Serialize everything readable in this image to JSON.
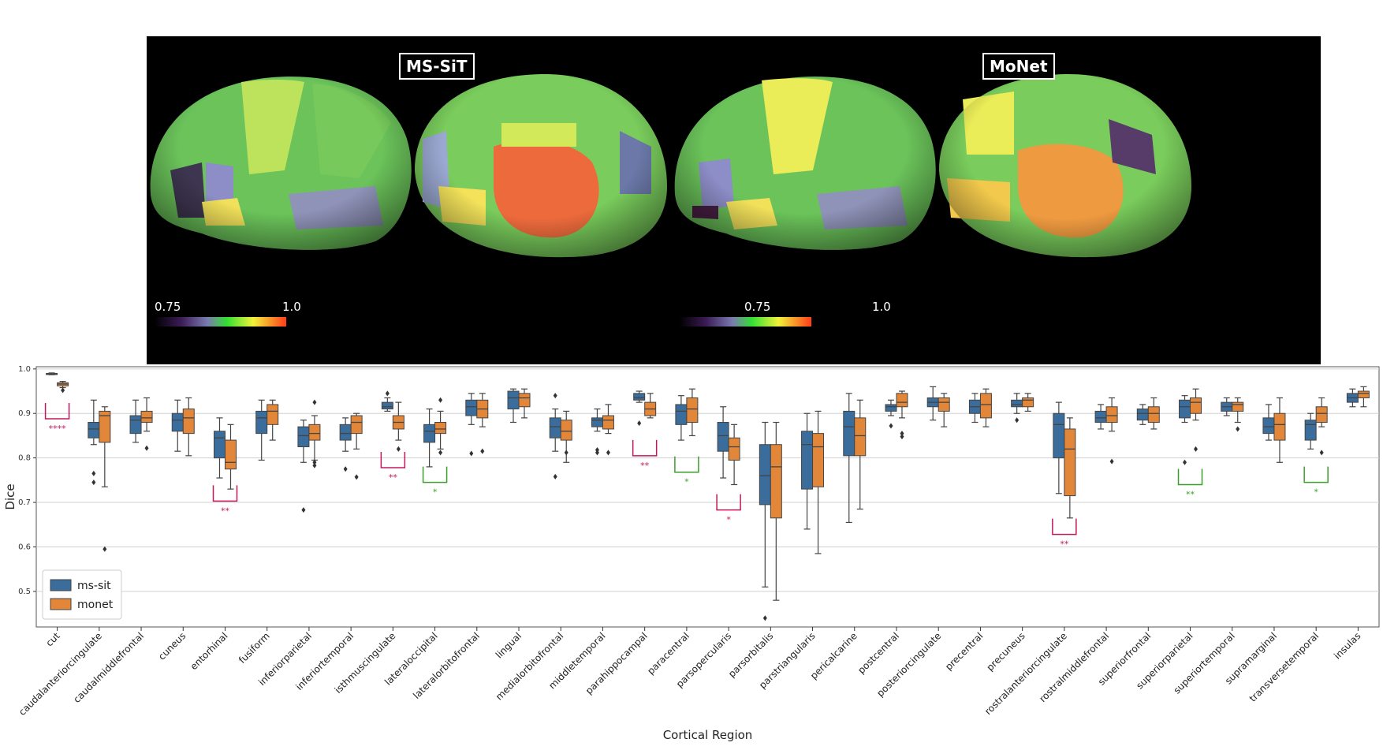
{
  "panel": {
    "left_title": "MS-SiT",
    "right_title": "MoNet",
    "colorbar_min": "0.75",
    "colorbar_max": "1.0"
  },
  "colors": {
    "ms-sit": "#3a6d9c",
    "monet": "#e2873a",
    "sig_magenta": "#c2185b",
    "sig_green": "#3a9e2a"
  },
  "chart_data": {
    "type": "box",
    "xlabel": "Cortical Region",
    "ylabel": "Dice",
    "ylim": [
      0.42,
      1.005
    ],
    "yticks": [
      0.5,
      0.6,
      0.7,
      0.8,
      0.9,
      1.0
    ],
    "ytick_labels": [
      "0.5",
      "0.6",
      "0.7",
      "0.8",
      "0.9",
      "1.0"
    ],
    "grid": true,
    "legend_position": "bottom-left",
    "categories": [
      "cut",
      "caudalanteriorcingulate",
      "caudalmiddlefrontal",
      "cuneus",
      "entorhinal",
      "fusiform",
      "inferiorparietal",
      "inferiortemporal",
      "isthmuscingulate",
      "lateraloccipital",
      "lateralorbitofrontal",
      "lingual",
      "medialorbitofrontal",
      "middletemporal",
      "parahippocampal",
      "paracentral",
      "parsopercularis",
      "parsorbitalis",
      "parstriangularis",
      "pericalcarine",
      "postcentral",
      "posteriorcingulate",
      "precentral",
      "precuneus",
      "rostralanteriorcingulate",
      "rostralmiddlefrontal",
      "superiorfrontal",
      "superiorparietal",
      "superiortemporal",
      "supramarginal",
      "transversetemporal",
      "insulas"
    ],
    "series": [
      {
        "name": "ms-sit",
        "boxes": [
          [
            0.987,
            0.988,
            0.989,
            0.99,
            0.991
          ],
          [
            0.83,
            0.845,
            0.865,
            0.88,
            0.93
          ],
          [
            0.835,
            0.855,
            0.885,
            0.895,
            0.93
          ],
          [
            0.815,
            0.86,
            0.885,
            0.9,
            0.93
          ],
          [
            0.755,
            0.8,
            0.845,
            0.86,
            0.89
          ],
          [
            0.795,
            0.855,
            0.89,
            0.905,
            0.93
          ],
          [
            0.79,
            0.825,
            0.85,
            0.87,
            0.885
          ],
          [
            0.815,
            0.84,
            0.855,
            0.875,
            0.89
          ],
          [
            0.905,
            0.91,
            0.915,
            0.925,
            0.935
          ],
          [
            0.78,
            0.835,
            0.86,
            0.875,
            0.91
          ],
          [
            0.875,
            0.895,
            0.915,
            0.93,
            0.945
          ],
          [
            0.88,
            0.91,
            0.935,
            0.95,
            0.955
          ],
          [
            0.815,
            0.845,
            0.87,
            0.89,
            0.91
          ],
          [
            0.86,
            0.87,
            0.885,
            0.89,
            0.91
          ],
          [
            0.925,
            0.93,
            0.935,
            0.945,
            0.95
          ],
          [
            0.84,
            0.875,
            0.905,
            0.92,
            0.94
          ],
          [
            0.755,
            0.815,
            0.85,
            0.88,
            0.915
          ],
          [
            0.51,
            0.695,
            0.76,
            0.83,
            0.88
          ],
          [
            0.64,
            0.73,
            0.83,
            0.86,
            0.9
          ],
          [
            0.655,
            0.805,
            0.87,
            0.905,
            0.945
          ],
          [
            0.895,
            0.905,
            0.915,
            0.92,
            0.93
          ],
          [
            0.885,
            0.915,
            0.925,
            0.935,
            0.96
          ],
          [
            0.88,
            0.9,
            0.915,
            0.93,
            0.945
          ],
          [
            0.9,
            0.915,
            0.92,
            0.93,
            0.945
          ],
          [
            0.72,
            0.8,
            0.875,
            0.9,
            0.925
          ],
          [
            0.865,
            0.88,
            0.89,
            0.905,
            0.92
          ],
          [
            0.875,
            0.885,
            0.9,
            0.91,
            0.92
          ],
          [
            0.88,
            0.89,
            0.915,
            0.93,
            0.94
          ],
          [
            0.895,
            0.905,
            0.915,
            0.925,
            0.935
          ],
          [
            0.84,
            0.855,
            0.87,
            0.89,
            0.92
          ],
          [
            0.82,
            0.84,
            0.875,
            0.885,
            0.9
          ],
          [
            0.915,
            0.925,
            0.935,
            0.945,
            0.955
          ]
        ],
        "outliers": [
          [],
          [
            0.765,
            0.745
          ],
          [],
          [],
          [],
          [],
          [
            0.683
          ],
          [
            0.775
          ],
          [
            0.945
          ],
          [],
          [
            0.81
          ],
          [],
          [
            0.94,
            0.758
          ],
          [
            0.818,
            0.812
          ],
          [
            0.878
          ],
          [],
          [],
          [
            0.44
          ],
          [],
          [],
          [
            0.872
          ],
          [],
          [],
          [
            0.885
          ],
          [],
          [],
          [],
          [
            0.79
          ],
          [],
          [],
          [],
          []
        ]
      },
      {
        "name": "monet",
        "boxes": [
          [
            0.958,
            0.962,
            0.966,
            0.969,
            0.972
          ],
          [
            0.735,
            0.835,
            0.895,
            0.905,
            0.915
          ],
          [
            0.86,
            0.88,
            0.89,
            0.905,
            0.935
          ],
          [
            0.805,
            0.855,
            0.89,
            0.91,
            0.935
          ],
          [
            0.73,
            0.775,
            0.79,
            0.84,
            0.875
          ],
          [
            0.84,
            0.875,
            0.905,
            0.92,
            0.93
          ],
          [
            0.795,
            0.84,
            0.855,
            0.875,
            0.895
          ],
          [
            0.82,
            0.855,
            0.88,
            0.895,
            0.9
          ],
          [
            0.84,
            0.865,
            0.88,
            0.895,
            0.925
          ],
          [
            0.82,
            0.855,
            0.865,
            0.88,
            0.905
          ],
          [
            0.87,
            0.89,
            0.91,
            0.93,
            0.945
          ],
          [
            0.89,
            0.915,
            0.935,
            0.945,
            0.955
          ],
          [
            0.79,
            0.84,
            0.86,
            0.885,
            0.905
          ],
          [
            0.855,
            0.865,
            0.885,
            0.895,
            0.92
          ],
          [
            0.89,
            0.895,
            0.91,
            0.925,
            0.945
          ],
          [
            0.85,
            0.88,
            0.91,
            0.935,
            0.955
          ],
          [
            0.74,
            0.795,
            0.825,
            0.845,
            0.875
          ],
          [
            0.48,
            0.665,
            0.78,
            0.83,
            0.88
          ],
          [
            0.585,
            0.735,
            0.825,
            0.855,
            0.905
          ],
          [
            0.685,
            0.805,
            0.85,
            0.89,
            0.93
          ],
          [
            0.89,
            0.915,
            0.925,
            0.945,
            0.95
          ],
          [
            0.87,
            0.905,
            0.925,
            0.935,
            0.945
          ],
          [
            0.87,
            0.89,
            0.92,
            0.945,
            0.955
          ],
          [
            0.905,
            0.915,
            0.93,
            0.935,
            0.945
          ],
          [
            0.665,
            0.715,
            0.82,
            0.865,
            0.89
          ],
          [
            0.86,
            0.88,
            0.895,
            0.915,
            0.935
          ],
          [
            0.865,
            0.88,
            0.9,
            0.915,
            0.935
          ],
          [
            0.885,
            0.9,
            0.925,
            0.935,
            0.955
          ],
          [
            0.88,
            0.905,
            0.92,
            0.925,
            0.935
          ],
          [
            0.79,
            0.84,
            0.875,
            0.9,
            0.935
          ],
          [
            0.87,
            0.88,
            0.9,
            0.915,
            0.935
          ],
          [
            0.915,
            0.935,
            0.945,
            0.95,
            0.96
          ]
        ],
        "outliers": [
          [
            0.952
          ],
          [
            0.595
          ],
          [
            0.822
          ],
          [],
          [],
          [],
          [
            0.925,
            0.79,
            0.783
          ],
          [
            0.757
          ],
          [
            0.82
          ],
          [
            0.93,
            0.812
          ],
          [
            0.815
          ],
          [],
          [
            0.812
          ],
          [
            0.812
          ],
          [],
          [],
          [],
          [],
          [],
          [],
          [
            0.855,
            0.848
          ],
          [],
          [],
          [],
          [],
          [
            0.792
          ],
          [],
          [
            0.82
          ],
          [
            0.865
          ],
          [],
          [
            0.812
          ],
          []
        ]
      }
    ],
    "significance": [
      {
        "category": "cut",
        "label": "****",
        "y": 0.888,
        "color": "magenta"
      },
      {
        "category": "entorhinal",
        "label": "**",
        "y": 0.703,
        "color": "magenta"
      },
      {
        "category": "isthmuscingulate",
        "label": "**",
        "y": 0.778,
        "color": "magenta"
      },
      {
        "category": "lateraloccipital",
        "label": "*",
        "y": 0.745,
        "color": "green"
      },
      {
        "category": "parahippocampal",
        "label": "**",
        "y": 0.805,
        "color": "magenta"
      },
      {
        "category": "paracentral",
        "label": "*",
        "y": 0.768,
        "color": "green"
      },
      {
        "category": "parsopercularis",
        "label": "*",
        "y": 0.683,
        "color": "magenta"
      },
      {
        "category": "rostralanteriorcingulate",
        "label": "**",
        "y": 0.628,
        "color": "magenta"
      },
      {
        "category": "superiorparietal",
        "label": "**",
        "y": 0.74,
        "color": "green"
      },
      {
        "category": "transversetemporal",
        "label": "*",
        "y": 0.745,
        "color": "green"
      }
    ]
  }
}
